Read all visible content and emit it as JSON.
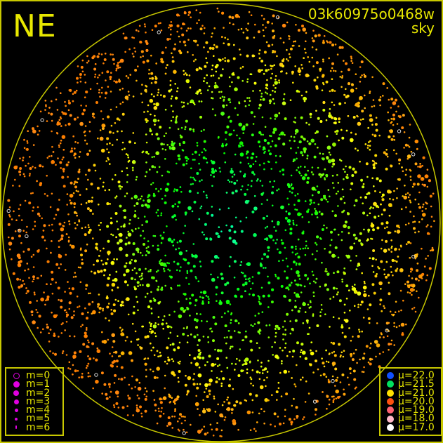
{
  "header": {
    "direction": "NE",
    "image_id": "03k60975o0468w",
    "image_type": "sky"
  },
  "magnitude_legend": [
    {
      "label": "m=0",
      "hollow": true
    },
    {
      "label": "m=1"
    },
    {
      "label": "m=2"
    },
    {
      "label": "m=3"
    },
    {
      "label": "m=4"
    },
    {
      "label": "m=5"
    },
    {
      "label": "m=6"
    }
  ],
  "brightness_legend": [
    {
      "label": "μ=22.0",
      "color": "#1050ff"
    },
    {
      "label": "μ=21.5",
      "color": "#00e060"
    },
    {
      "label": "μ=21.0",
      "color": "#ffe000"
    },
    {
      "label": "μ=20.0",
      "color": "#ff5010"
    },
    {
      "label": "μ=19.0",
      "color": "#ff6070"
    },
    {
      "label": "μ=18.0",
      "color": "#ffb8c8"
    },
    {
      "label": "μ=17.0",
      "color": "#ffffff"
    }
  ],
  "colors": {
    "frame": "#c8c800",
    "text": "#e8e800",
    "legend_marker": "#e000e0"
  }
}
